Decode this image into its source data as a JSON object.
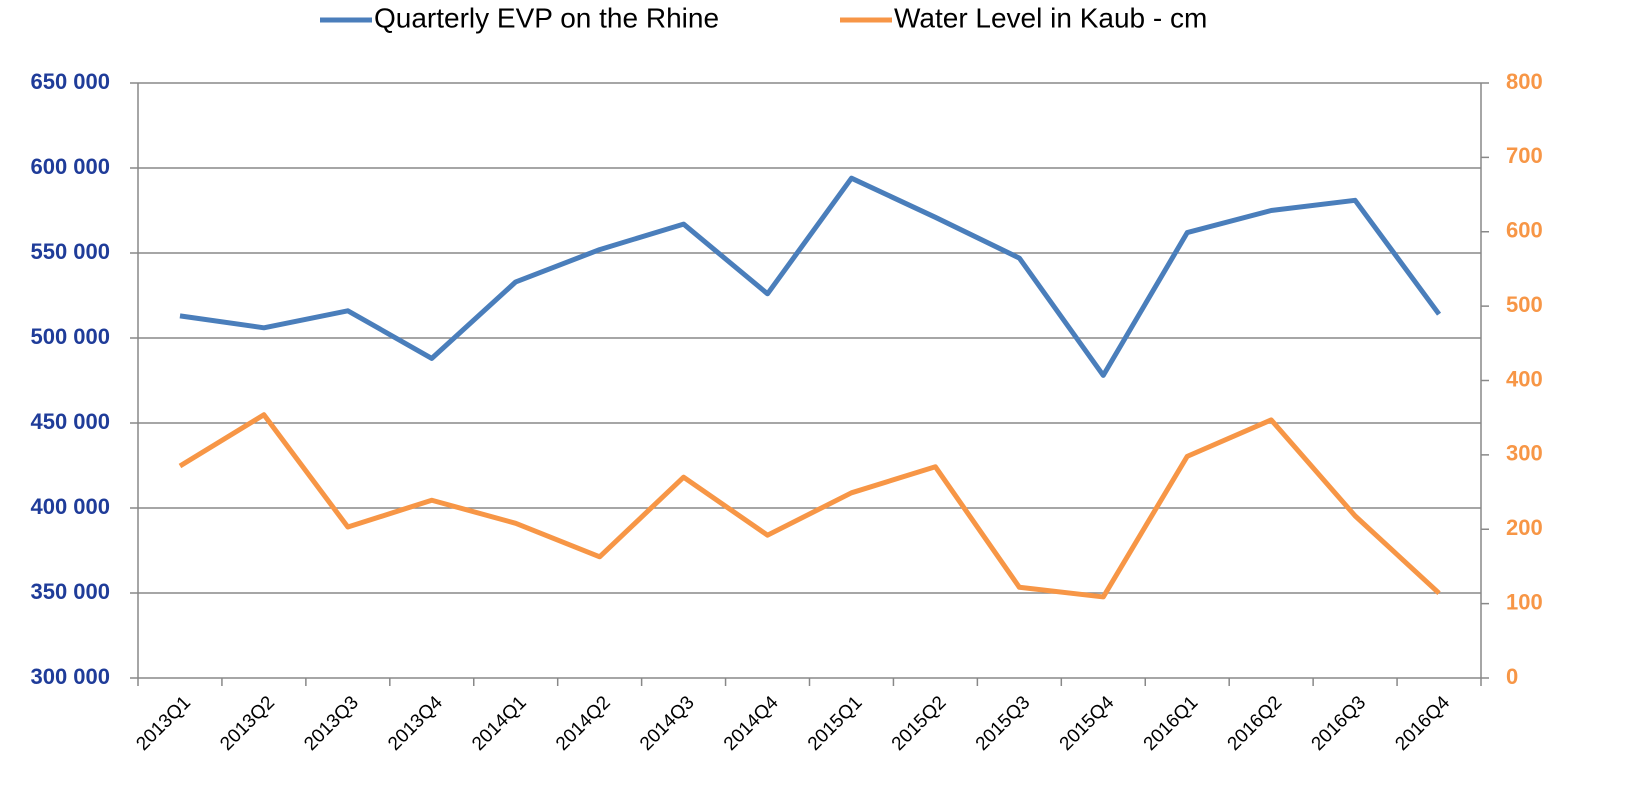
{
  "chart_data": {
    "type": "line",
    "categories": [
      "2013Q1",
      "2013Q2",
      "2013Q3",
      "2013Q4",
      "2014Q1",
      "2014Q2",
      "2014Q3",
      "2014Q4",
      "2015Q1",
      "2015Q2",
      "2015Q3",
      "2015Q4",
      "2016Q1",
      "2016Q2",
      "2016Q3",
      "2016Q4"
    ],
    "series": [
      {
        "name": "Quarterly EVP on the Rhine",
        "color": "#4a7ebb",
        "values": [
          513000,
          506000,
          516000,
          488000,
          533000,
          552000,
          567000,
          526000,
          594000,
          571000,
          547000,
          478000,
          562000,
          575000,
          581000,
          514000
        ]
      },
      {
        "name": "Water Level in Kaub - cm",
        "color": "#f79646",
        "axis": "y2",
        "values": [
          285,
          354,
          203,
          239,
          208,
          163,
          270,
          192,
          249,
          284,
          122,
          109,
          298,
          347,
          218,
          114
        ]
      }
    ],
    "ylim": [
      300000,
      650000
    ],
    "yticks": [
      {
        "value": 300000,
        "label": "300 000"
      },
      {
        "value": 350000,
        "label": "350 000"
      },
      {
        "value": 400000,
        "label": "400 000"
      },
      {
        "value": 450000,
        "label": "450 000"
      },
      {
        "value": 500000,
        "label": "500 000"
      },
      {
        "value": 550000,
        "label": "550 000"
      },
      {
        "value": 600000,
        "label": "600 000"
      },
      {
        "value": 650000,
        "label": "650 000"
      }
    ],
    "y2lim": [
      0,
      800
    ],
    "y2ticks": [
      0,
      100,
      200,
      300,
      400,
      500,
      600,
      700,
      800
    ],
    "grid": true,
    "legend": "top"
  }
}
